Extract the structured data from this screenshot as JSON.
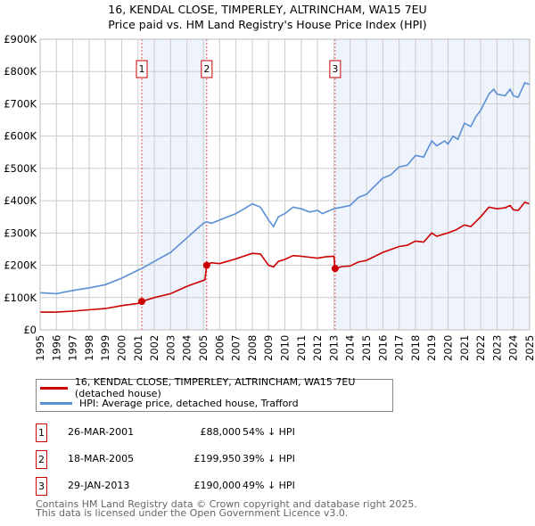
{
  "title": "16, KENDAL CLOSE, TIMPERLEY, ALTRINCHAM, WA15 7EU",
  "subtitle": "Price paid vs. HM Land Registry's House Price Index (HPI)",
  "chart_data": {
    "type": "line",
    "title": "16, KENDAL CLOSE, TIMPERLEY, ALTRINCHAM, WA15 7EU",
    "subtitle": "Price paid vs. HM Land Registry's House Price Index (HPI)",
    "xlim": [
      1995,
      2025
    ],
    "ylim": [
      0,
      900000
    ],
    "grid": true,
    "y_ticks": [
      0,
      100000,
      200000,
      300000,
      400000,
      500000,
      600000,
      700000,
      800000,
      900000
    ],
    "y_tick_labels": [
      "£0",
      "£100K",
      "£200K",
      "£300K",
      "£400K",
      "£500K",
      "£600K",
      "£700K",
      "£800K",
      "£900K"
    ],
    "x_ticks": [
      "1995",
      "1996",
      "1997",
      "1998",
      "1999",
      "2000",
      "2001",
      "2002",
      "2003",
      "2004",
      "2005",
      "2006",
      "2007",
      "2008",
      "2009",
      "2010",
      "2011",
      "2012",
      "2013",
      "2014",
      "2015",
      "2016",
      "2017",
      "2018",
      "2019",
      "2020",
      "2021",
      "2022",
      "2023",
      "2024",
      "2025"
    ],
    "shaded_ranges": [
      [
        2001.23,
        2005.21
      ],
      [
        2013.08,
        2025
      ]
    ],
    "series": [
      {
        "name": "16, KENDAL CLOSE, TIMPERLEY, ALTRINCHAM, WA15 7EU (detached house)",
        "color": "#cc0000",
        "x": [
          1995,
          1996,
          1997,
          1998,
          1999,
          2000,
          2001,
          2001.23,
          2002,
          2003,
          2004,
          2005.1,
          2005.21,
          2005.5,
          2006,
          2007,
          2008,
          2008.5,
          2009,
          2009.3,
          2009.6,
          2010,
          2010.5,
          2011,
          2011.5,
          2012,
          2012.5,
          2013.0,
          2013.08,
          2013.5,
          2014,
          2014.5,
          2015,
          2016,
          2017,
          2017.5,
          2018,
          2018.5,
          2019,
          2019.3,
          2020,
          2020.5,
          2021,
          2021.4,
          2022,
          2022.5,
          2023,
          2023.5,
          2023.8,
          2024,
          2024.3,
          2024.7,
          2025
        ],
        "y": [
          55000,
          55000,
          58000,
          62000,
          66000,
          75000,
          82000,
          88000,
          100000,
          112000,
          135000,
          155000,
          199950,
          208000,
          205000,
          220000,
          237000,
          235000,
          200000,
          195000,
          212000,
          218000,
          230000,
          228000,
          225000,
          222000,
          226000,
          228000,
          190000,
          196000,
          198000,
          210000,
          215000,
          240000,
          258000,
          262000,
          275000,
          272000,
          300000,
          290000,
          300000,
          310000,
          325000,
          320000,
          350000,
          380000,
          375000,
          378000,
          385000,
          372000,
          370000,
          395000,
          390000
        ]
      },
      {
        "name": "HPI: Average price, detached house, Trafford",
        "color": "#5b8fd4",
        "x": [
          1995,
          1996,
          1997,
          1998,
          1999,
          2000,
          2001,
          2001.23,
          2002,
          2003,
          2004,
          2005,
          2005.2,
          2005.5,
          2006,
          2007,
          2007.5,
          2008,
          2008.5,
          2009,
          2009.3,
          2009.6,
          2010,
          2010.5,
          2011,
          2011.5,
          2012,
          2012.3,
          2013,
          2014,
          2014.5,
          2015,
          2015.5,
          2016,
          2016.5,
          2017,
          2017.5,
          2018,
          2018.5,
          2019,
          2019.3,
          2019.8,
          2020,
          2020.3,
          2020.6,
          2021,
          2021.4,
          2021.7,
          2022,
          2022.5,
          2022.8,
          2023,
          2023.5,
          2023.8,
          2024,
          2024.3,
          2024.7,
          2025
        ],
        "y": [
          115000,
          112000,
          122000,
          130000,
          140000,
          160000,
          185000,
          190000,
          212000,
          240000,
          285000,
          330000,
          335000,
          330000,
          340000,
          360000,
          375000,
          390000,
          380000,
          340000,
          320000,
          350000,
          360000,
          380000,
          375000,
          365000,
          370000,
          360000,
          375000,
          385000,
          410000,
          420000,
          445000,
          470000,
          480000,
          505000,
          510000,
          540000,
          535000,
          585000,
          570000,
          585000,
          575000,
          600000,
          590000,
          640000,
          630000,
          660000,
          680000,
          730000,
          745000,
          730000,
          725000,
          745000,
          725000,
          720000,
          765000,
          760000
        ]
      }
    ],
    "sales": [
      {
        "label": "1",
        "x": 2001.23,
        "y": 88000
      },
      {
        "label": "2",
        "x": 2005.21,
        "y": 199950
      },
      {
        "label": "3",
        "x": 2013.08,
        "y": 190000
      }
    ]
  },
  "legend": {
    "property": "16, KENDAL CLOSE, TIMPERLEY, ALTRINCHAM, WA15 7EU (detached house)",
    "hpi": "HPI: Average price, detached house, Trafford"
  },
  "transactions": [
    {
      "num": "1",
      "date": "26-MAR-2001",
      "price": "£88,000",
      "hpi": "54% ↓ HPI"
    },
    {
      "num": "2",
      "date": "18-MAR-2005",
      "price": "£199,950",
      "hpi": "39% ↓ HPI"
    },
    {
      "num": "3",
      "date": "29-JAN-2013",
      "price": "£190,000",
      "hpi": "49% ↓ HPI"
    }
  ],
  "footer": {
    "line1": "Contains HM Land Registry data © Crown copyright and database right 2025.",
    "line2": "This data is licensed under the Open Government Licence v3.0."
  },
  "colors": {
    "property": "#cc0000",
    "hpi": "#5b8fd4",
    "shade": "#eef3fc"
  }
}
